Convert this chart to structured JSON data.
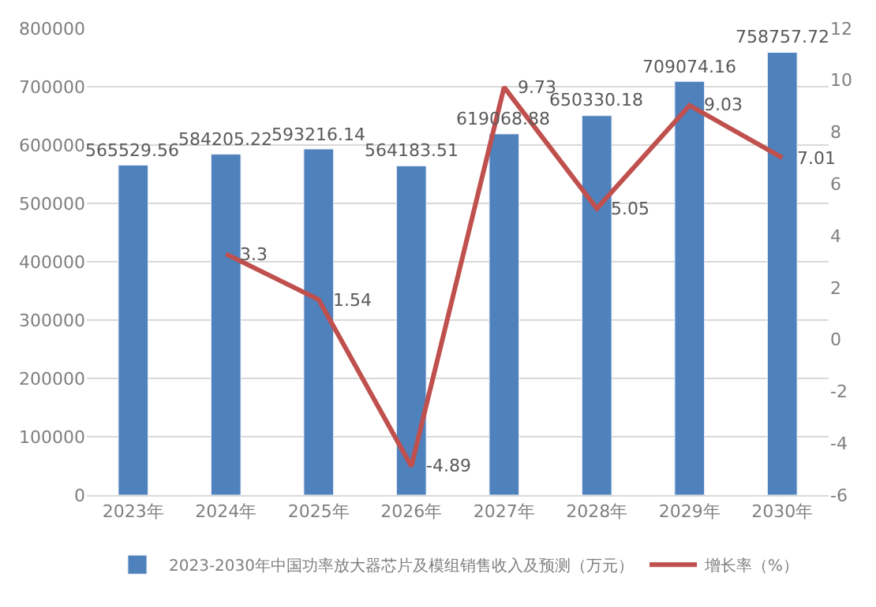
{
  "chart_data": {
    "type": "bar",
    "categories": [
      "2023年",
      "2024年",
      "2025年",
      "2026年",
      "2027年",
      "2028年",
      "2029年",
      "2030年"
    ],
    "series": [
      {
        "name": "2023-2030年中国功率放大器芯片及模组销售收入及预测（万元）",
        "color": "#4f81bd",
        "values": [
          565529.56,
          584205.22,
          593216.14,
          564183.51,
          619068.88,
          650330.18,
          709074.16,
          758757.72
        ]
      },
      {
        "name": "增长率（%）",
        "color": "#c0504d",
        "type": "line",
        "axis": "y2",
        "values": [
          null,
          3.3,
          1.54,
          -4.89,
          9.73,
          5.05,
          9.03,
          7.01
        ]
      }
    ],
    "data_labels": true,
    "ylim": [
      0,
      800000
    ],
    "yticks": [
      0,
      100000,
      200000,
      300000,
      400000,
      500000,
      600000,
      700000,
      800000
    ],
    "y2lim": [
      -6,
      12
    ],
    "y2ticks": [
      -6,
      -4,
      -2,
      0,
      2,
      4,
      6,
      8,
      10,
      12
    ],
    "grid": "y",
    "legend": "bottom",
    "marker": "none"
  }
}
